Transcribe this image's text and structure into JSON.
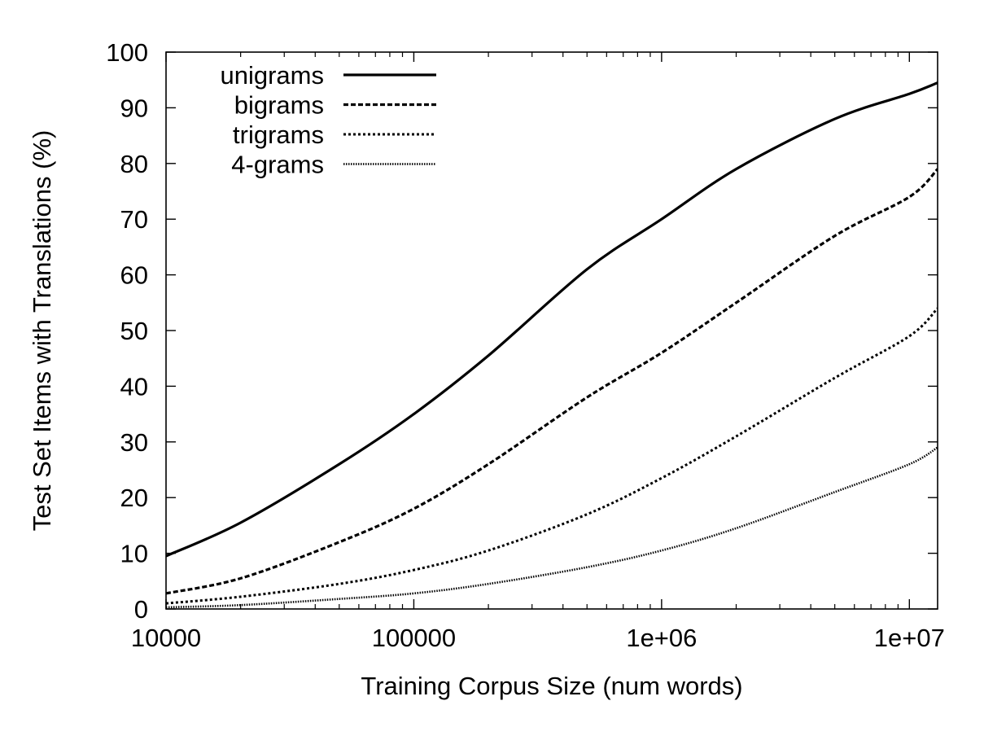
{
  "chart_data": {
    "type": "line",
    "title": "",
    "xlabel": "Training Corpus Size (num words)",
    "ylabel": "Test Set Items with Translations (%)",
    "x_scale": "log",
    "xlim": [
      10000,
      13000000
    ],
    "ylim": [
      0,
      100
    ],
    "x_ticks": [
      10000,
      100000,
      1000000,
      10000000
    ],
    "x_tick_labels": [
      "10000",
      "100000",
      "1e+06",
      "1e+07"
    ],
    "y_ticks": [
      0,
      10,
      20,
      30,
      40,
      50,
      60,
      70,
      80,
      90,
      100
    ],
    "y_tick_labels": [
      "0",
      "10",
      "20",
      "30",
      "40",
      "50",
      "60",
      "70",
      "80",
      "90",
      "100"
    ],
    "legend_position": "top-left",
    "grid": false,
    "x": [
      10000,
      20000,
      50000,
      100000,
      200000,
      500000,
      1000000,
      2000000,
      5000000,
      10000000,
      13000000
    ],
    "series": [
      {
        "name": "unigrams",
        "style": "solid",
        "values": [
          9.5,
          15.5,
          26,
          35,
          45.5,
          61,
          70,
          79,
          88,
          92.5,
          94.5
        ]
      },
      {
        "name": "bigrams",
        "style": "dashed",
        "values": [
          2.8,
          5.5,
          12,
          18,
          26,
          38,
          46,
          55,
          67,
          74,
          79
        ]
      },
      {
        "name": "trigrams",
        "style": "dotted",
        "values": [
          1,
          2.2,
          4.5,
          7,
          10.5,
          17,
          23.5,
          31,
          41.5,
          49,
          54
        ]
      },
      {
        "name": "4-grams",
        "style": "fine-dotted",
        "values": [
          0.3,
          0.7,
          1.8,
          2.8,
          4.5,
          7.5,
          10.5,
          14.5,
          21,
          26,
          29
        ]
      }
    ]
  }
}
